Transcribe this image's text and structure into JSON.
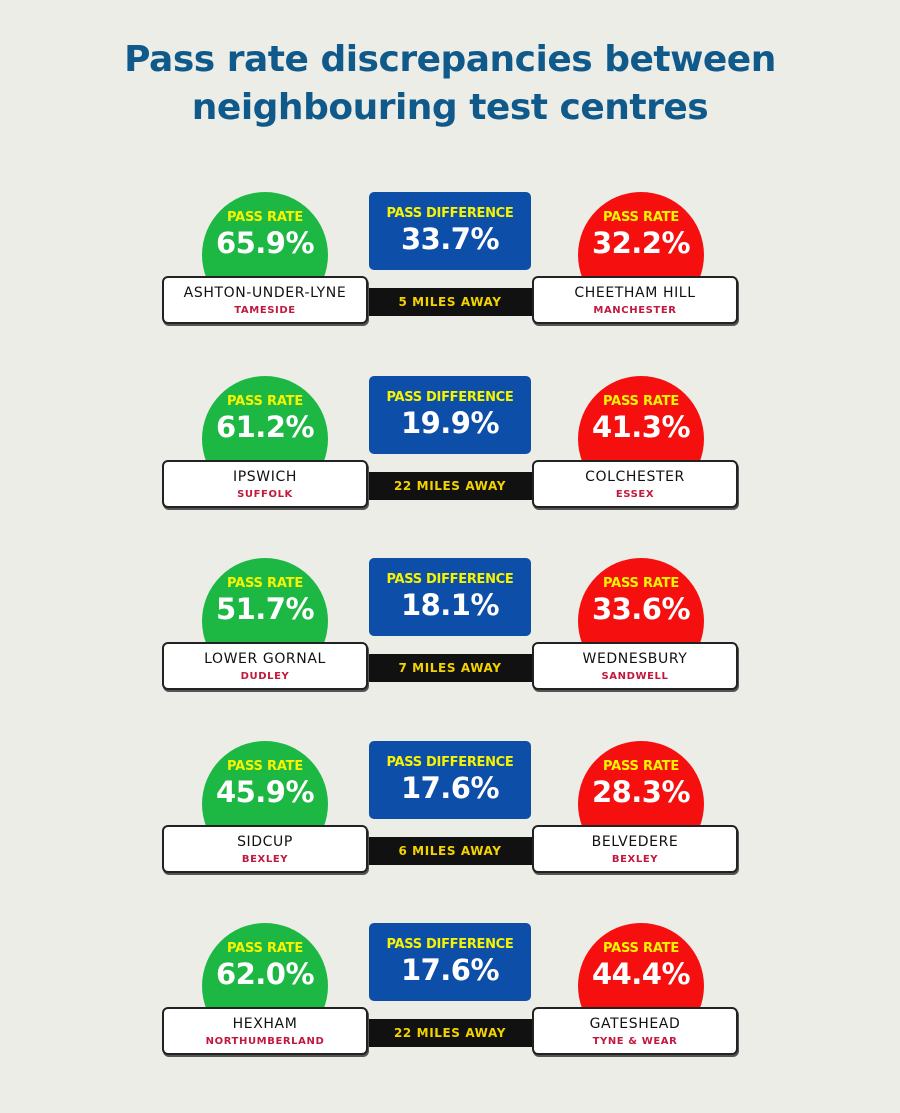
{
  "title": {
    "line1": "Pass rate discrepancies between",
    "line2": "neighbouring test centres"
  },
  "colors": {
    "title": "#0f5a8a",
    "high_pass": "#1cb843",
    "low_pass": "#f5100f",
    "difference_box": "#0d4ea8",
    "label_yellow": "#f6f400",
    "region_text": "#c2183e",
    "distance_bar": "#111111"
  },
  "rows": [
    {
      "left": {
        "label": "PASS RATE",
        "value": "65.9%",
        "name": "ASHTON-UNDER-LYNE",
        "region": "TAMESIDE"
      },
      "diff": {
        "label": "PASS DIFFERENCE",
        "value": "33.7%"
      },
      "distance": "5 MILES AWAY",
      "right": {
        "label": "PASS RATE",
        "value": "32.2%",
        "name": "CHEETHAM HILL",
        "region": "MANCHESTER"
      }
    },
    {
      "left": {
        "label": "PASS RATE",
        "value": "61.2%",
        "name": "IPSWICH",
        "region": "SUFFOLK"
      },
      "diff": {
        "label": "PASS DIFFERENCE",
        "value": "19.9%"
      },
      "distance": "22 MILES AWAY",
      "right": {
        "label": "PASS RATE",
        "value": "41.3%",
        "name": "COLCHESTER",
        "region": "ESSEX"
      }
    },
    {
      "left": {
        "label": "PASS RATE",
        "value": "51.7%",
        "name": "LOWER GORNAL",
        "region": "DUDLEY"
      },
      "diff": {
        "label": "PASS DIFFERENCE",
        "value": "18.1%"
      },
      "distance": "7 MILES AWAY",
      "right": {
        "label": "PASS RATE",
        "value": "33.6%",
        "name": "WEDNESBURY",
        "region": "SANDWELL"
      }
    },
    {
      "left": {
        "label": "PASS RATE",
        "value": "45.9%",
        "name": "SIDCUP",
        "region": "BEXLEY"
      },
      "diff": {
        "label": "PASS DIFFERENCE",
        "value": "17.6%"
      },
      "distance": "6 MILES AWAY",
      "right": {
        "label": "PASS RATE",
        "value": "28.3%",
        "name": "BELVEDERE",
        "region": "BEXLEY"
      }
    },
    {
      "left": {
        "label": "PASS RATE",
        "value": "62.0%",
        "name": "HEXHAM",
        "region": "NORTHUMBERLAND"
      },
      "diff": {
        "label": "PASS DIFFERENCE",
        "value": "17.6%"
      },
      "distance": "22 MILES AWAY",
      "right": {
        "label": "PASS RATE",
        "value": "44.4%",
        "name": "GATESHEAD",
        "region": "TYNE & WEAR"
      }
    }
  ]
}
